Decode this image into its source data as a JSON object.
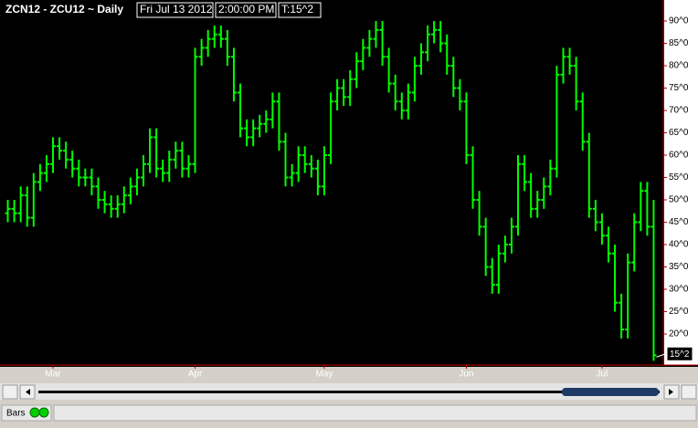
{
  "chart_data": {
    "type": "ohlc",
    "title": "ZCN12 - ZCU12 ~ Daily",
    "date_label": "Fri Jul 13 2012",
    "time_label": "2:00:00 PM",
    "last_tag": "T:15^2",
    "last_label": "15^2",
    "color": "#00ff00",
    "categories": [
      null,
      null,
      null,
      null,
      null,
      null,
      null,
      "Mar",
      null,
      null,
      null,
      null,
      null,
      null,
      null,
      null,
      null,
      null,
      null,
      null,
      null,
      null,
      null,
      null,
      null,
      null,
      null,
      null,
      null,
      "Apr",
      null,
      null,
      null,
      null,
      null,
      null,
      null,
      null,
      null,
      null,
      null,
      null,
      null,
      null,
      null,
      null,
      null,
      null,
      null,
      "May",
      null,
      null,
      null,
      null,
      null,
      null,
      null,
      null,
      null,
      null,
      null,
      null,
      null,
      null,
      null,
      null,
      null,
      null,
      null,
      null,
      null,
      "Jun",
      null,
      null,
      null,
      null,
      null,
      null,
      null,
      null,
      null,
      null,
      null,
      null,
      null,
      null,
      null,
      null,
      null,
      null,
      null,
      null,
      "Jul",
      null,
      null,
      null,
      null,
      null,
      null,
      null,
      null
    ],
    "open": [
      47,
      48,
      47,
      51,
      46,
      54,
      56,
      58,
      62,
      61,
      59,
      57,
      55,
      55,
      53,
      50,
      49,
      48,
      49,
      51,
      53,
      55,
      58,
      64,
      57,
      56,
      59,
      61,
      57,
      58,
      82,
      84,
      86,
      87,
      86,
      82,
      74,
      66,
      64,
      66,
      67,
      68,
      72,
      63,
      55,
      56,
      60,
      58,
      57,
      53,
      60,
      72,
      75,
      73,
      77,
      81,
      84,
      86,
      88,
      82,
      76,
      72,
      70,
      74,
      80,
      83,
      87,
      88,
      85,
      80,
      75,
      72,
      60,
      50,
      44,
      35,
      31,
      38,
      40,
      44,
      58,
      54,
      48,
      50,
      53,
      57,
      78,
      82,
      80,
      72,
      63,
      48,
      45,
      42,
      38,
      27,
      21,
      36,
      45,
      52,
      44
    ],
    "high": [
      50,
      50,
      53,
      53,
      56,
      58,
      60,
      64,
      64,
      63,
      61,
      59,
      57,
      57,
      55,
      52,
      51,
      51,
      53,
      55,
      57,
      60,
      66,
      66,
      59,
      61,
      63,
      63,
      60,
      84,
      86,
      88,
      89,
      89,
      88,
      84,
      76,
      68,
      68,
      69,
      70,
      74,
      74,
      65,
      58,
      62,
      62,
      60,
      59,
      62,
      74,
      77,
      77,
      79,
      83,
      86,
      88,
      90,
      90,
      84,
      78,
      74,
      76,
      82,
      85,
      89,
      90,
      90,
      87,
      82,
      77,
      74,
      62,
      52,
      46,
      37,
      40,
      42,
      46,
      60,
      60,
      56,
      52,
      55,
      59,
      80,
      84,
      84,
      82,
      74,
      65,
      50,
      47,
      44,
      40,
      29,
      38,
      47,
      54,
      54,
      50
    ],
    "low": [
      45,
      45,
      45,
      44,
      44,
      52,
      54,
      56,
      59,
      57,
      55,
      53,
      53,
      51,
      48,
      47,
      46,
      46,
      47,
      49,
      51,
      53,
      56,
      55,
      54,
      54,
      57,
      55,
      55,
      56,
      80,
      82,
      84,
      84,
      80,
      72,
      64,
      62,
      62,
      64,
      65,
      66,
      61,
      53,
      53,
      54,
      56,
      55,
      51,
      51,
      58,
      70,
      71,
      71,
      75,
      79,
      82,
      84,
      80,
      74,
      70,
      68,
      68,
      72,
      78,
      81,
      85,
      83,
      78,
      73,
      70,
      58,
      48,
      42,
      33,
      29,
      29,
      36,
      38,
      42,
      52,
      46,
      46,
      48,
      51,
      55,
      76,
      78,
      70,
      61,
      46,
      43,
      40,
      36,
      25,
      19,
      19,
      34,
      43,
      42,
      14
    ],
    "close": [
      48,
      47,
      51,
      46,
      54,
      56,
      58,
      62,
      61,
      59,
      57,
      55,
      55,
      53,
      50,
      49,
      48,
      49,
      51,
      53,
      55,
      58,
      64,
      57,
      56,
      59,
      61,
      57,
      58,
      82,
      84,
      86,
      87,
      86,
      82,
      74,
      66,
      64,
      66,
      67,
      68,
      72,
      63,
      55,
      56,
      60,
      58,
      57,
      53,
      60,
      72,
      75,
      73,
      77,
      81,
      84,
      86,
      88,
      82,
      76,
      72,
      70,
      74,
      80,
      83,
      87,
      88,
      85,
      80,
      75,
      72,
      60,
      50,
      44,
      35,
      31,
      38,
      40,
      44,
      58,
      54,
      48,
      50,
      53,
      57,
      78,
      82,
      80,
      72,
      63,
      48,
      45,
      42,
      38,
      27,
      21,
      36,
      45,
      52,
      44,
      15.25
    ],
    "ylim": [
      13.06,
      94.7
    ],
    "yticks": [
      {
        "value": 90,
        "label": "90^0"
      },
      {
        "value": 85,
        "label": "85^0"
      },
      {
        "value": 80,
        "label": "80^0"
      },
      {
        "value": 75,
        "label": "75^0"
      },
      {
        "value": 70,
        "label": "70^0"
      },
      {
        "value": 65,
        "label": "65^0"
      },
      {
        "value": 60,
        "label": "60^0"
      },
      {
        "value": 55,
        "label": "55^0"
      },
      {
        "value": 50,
        "label": "50^0"
      },
      {
        "value": 45,
        "label": "45^0"
      },
      {
        "value": 40,
        "label": "40^0"
      },
      {
        "value": 35,
        "label": "35^0"
      },
      {
        "value": 30,
        "label": "30^0"
      },
      {
        "value": 25,
        "label": "25^0"
      },
      {
        "value": 20,
        "label": "20^0"
      }
    ]
  },
  "status_bar": {
    "label": "Bars"
  }
}
